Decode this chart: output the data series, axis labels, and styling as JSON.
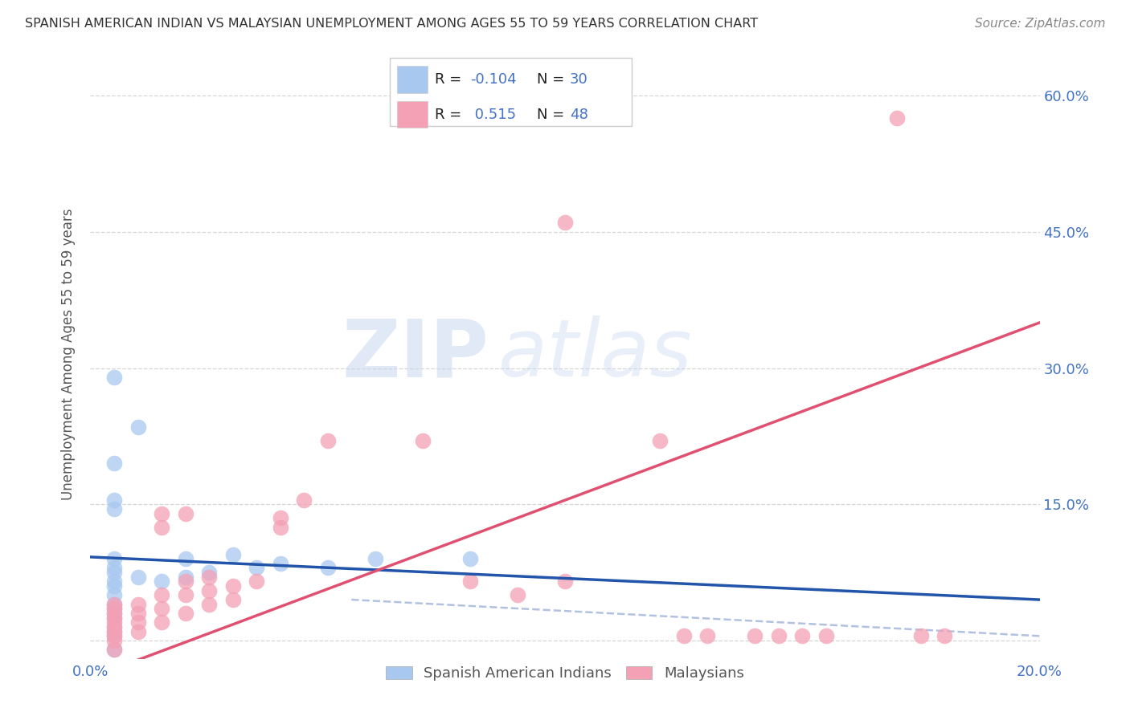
{
  "title": "SPANISH AMERICAN INDIAN VS MALAYSIAN UNEMPLOYMENT AMONG AGES 55 TO 59 YEARS CORRELATION CHART",
  "source": "Source: ZipAtlas.com",
  "ylabel": "Unemployment Among Ages 55 to 59 years",
  "xlim": [
    0.0,
    20.0
  ],
  "ylim": [
    -2.0,
    65.0
  ],
  "R_blue": -0.104,
  "N_blue": 30,
  "R_pink": 0.515,
  "N_pink": 48,
  "legend_label1": "Spanish American Indians",
  "legend_label2": "Malaysians",
  "watermark_zip": "ZIP",
  "watermark_atlas": "atlas",
  "blue_color": "#A8C8F0",
  "pink_color": "#F4A0B5",
  "blue_line_color": "#2255AA",
  "pink_line_color": "#E05070",
  "dashed_color": "#AABBDD",
  "background_color": "#FFFFFF",
  "grid_color": "#CCCCCC",
  "blue_scatter": [
    [
      0.5,
      29.0
    ],
    [
      1.0,
      23.5
    ],
    [
      0.5,
      19.5
    ],
    [
      0.5,
      15.5
    ],
    [
      0.5,
      14.5
    ],
    [
      0.5,
      9.0
    ],
    [
      0.5,
      8.0
    ],
    [
      0.5,
      7.5
    ],
    [
      0.5,
      6.5
    ],
    [
      0.5,
      6.0
    ],
    [
      0.5,
      5.0
    ],
    [
      0.5,
      4.0
    ],
    [
      0.5,
      3.5
    ],
    [
      0.5,
      3.0
    ],
    [
      0.5,
      2.5
    ],
    [
      0.5,
      1.5
    ],
    [
      0.5,
      1.0
    ],
    [
      0.5,
      0.5
    ],
    [
      0.5,
      -1.0
    ],
    [
      1.0,
      7.0
    ],
    [
      1.5,
      6.5
    ],
    [
      2.0,
      9.0
    ],
    [
      2.0,
      7.0
    ],
    [
      2.5,
      7.5
    ],
    [
      3.0,
      9.5
    ],
    [
      3.5,
      8.0
    ],
    [
      4.0,
      8.5
    ],
    [
      5.0,
      8.0
    ],
    [
      6.0,
      9.0
    ],
    [
      8.0,
      9.0
    ]
  ],
  "pink_scatter": [
    [
      0.5,
      -1.0
    ],
    [
      0.5,
      0.0
    ],
    [
      0.5,
      0.5
    ],
    [
      0.5,
      1.0
    ],
    [
      0.5,
      1.5
    ],
    [
      0.5,
      2.0
    ],
    [
      0.5,
      2.5
    ],
    [
      0.5,
      3.0
    ],
    [
      0.5,
      3.5
    ],
    [
      0.5,
      4.0
    ],
    [
      1.0,
      1.0
    ],
    [
      1.0,
      2.0
    ],
    [
      1.0,
      3.0
    ],
    [
      1.0,
      4.0
    ],
    [
      1.5,
      2.0
    ],
    [
      1.5,
      3.5
    ],
    [
      1.5,
      5.0
    ],
    [
      1.5,
      12.5
    ],
    [
      1.5,
      14.0
    ],
    [
      2.0,
      3.0
    ],
    [
      2.0,
      5.0
    ],
    [
      2.0,
      6.5
    ],
    [
      2.0,
      14.0
    ],
    [
      2.5,
      4.0
    ],
    [
      2.5,
      5.5
    ],
    [
      2.5,
      7.0
    ],
    [
      3.0,
      4.5
    ],
    [
      3.0,
      6.0
    ],
    [
      3.5,
      6.5
    ],
    [
      4.0,
      12.5
    ],
    [
      4.0,
      13.5
    ],
    [
      4.5,
      15.5
    ],
    [
      5.0,
      22.0
    ],
    [
      7.0,
      22.0
    ],
    [
      8.0,
      6.5
    ],
    [
      9.0,
      5.0
    ],
    [
      10.0,
      6.5
    ],
    [
      10.0,
      46.0
    ],
    [
      12.0,
      22.0
    ],
    [
      12.5,
      0.5
    ],
    [
      13.0,
      0.5
    ],
    [
      14.0,
      0.5
    ],
    [
      14.5,
      0.5
    ],
    [
      15.0,
      0.5
    ],
    [
      15.5,
      0.5
    ],
    [
      17.0,
      57.5
    ],
    [
      17.5,
      0.5
    ],
    [
      18.0,
      0.5
    ]
  ],
  "blue_line": [
    [
      0.0,
      9.2
    ],
    [
      20.0,
      4.5
    ]
  ],
  "pink_line": [
    [
      -2.0,
      -8.0
    ],
    [
      20.0,
      35.0
    ]
  ],
  "dashed_line": [
    [
      5.5,
      4.5
    ],
    [
      20.0,
      0.5
    ]
  ]
}
